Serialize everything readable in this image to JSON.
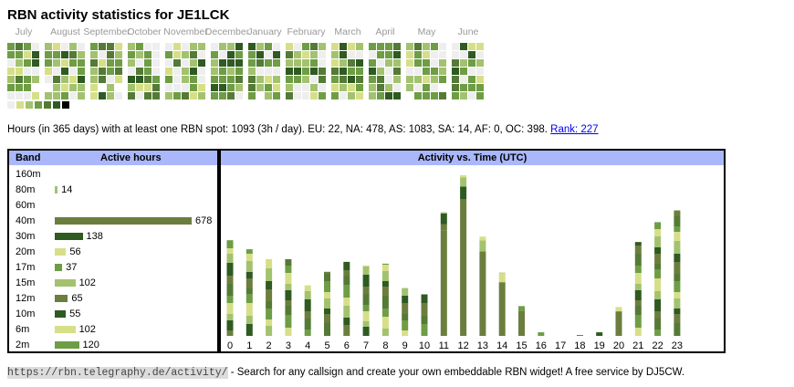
{
  "page": {
    "title": "RBN activity statistics for JE1LCK",
    "months": [
      "July",
      "August",
      "September",
      "October",
      "November",
      "December",
      "January",
      "February",
      "March",
      "April",
      "May",
      "June"
    ],
    "legend_colors": [
      "#eeeeee",
      "#d6df88",
      "#a3c26f",
      "#6e9d45",
      "#557a36",
      "#2f5a22",
      "#000000"
    ],
    "summary": {
      "text": "Hours (in 365 days) with at least one RBN spot: 1093 (3h / day). EU: 22, NA: 478, AS: 1083, SA: 14, AF: 0, OC: 398.",
      "rank_label": "Rank: 227"
    },
    "footer": {
      "url": "https://rbn.telegraphy.de/activity/",
      "text": " - Search for any callsign and create your own embeddable RBN widget! A free service by DJ5CW."
    }
  },
  "bands_table": {
    "header_band": "Band",
    "header_hours": "Active hours",
    "rows": [
      {
        "band": "160m",
        "hours": null,
        "color": "#6e9d45"
      },
      {
        "band": "80m",
        "hours": "14",
        "color": "#a3c26f"
      },
      {
        "band": "60m",
        "hours": null,
        "color": "#6e9d45"
      },
      {
        "band": "40m",
        "hours": "678",
        "color": "#6b7e3e"
      },
      {
        "band": "30m",
        "hours": "138",
        "color": "#2f5a22"
      },
      {
        "band": "20m",
        "hours": "56",
        "color": "#d6df88"
      },
      {
        "band": "17m",
        "hours": "37",
        "color": "#6e9d45"
      },
      {
        "band": "15m",
        "hours": "102",
        "color": "#a3c26f"
      },
      {
        "band": "12m",
        "hours": "65",
        "color": "#6b7e3e"
      },
      {
        "band": "10m",
        "hours": "55",
        "color": "#2f5a22"
      },
      {
        "band": "6m",
        "hours": "102",
        "color": "#d6df88"
      },
      {
        "band": "2m",
        "hours": "120",
        "color": "#6e9d45"
      }
    ]
  },
  "chart_data": {
    "type": "bar",
    "title": "Activity vs. Time (UTC)",
    "categories": [
      "0",
      "1",
      "2",
      "3",
      "4",
      "5",
      "6",
      "7",
      "8",
      "9",
      "10",
      "11",
      "12",
      "13",
      "14",
      "15",
      "16",
      "17",
      "18",
      "19",
      "20",
      "21",
      "22",
      "23"
    ],
    "values": [
      106,
      96,
      85,
      85,
      56,
      71,
      82,
      78,
      80,
      53,
      46,
      137,
      178,
      110,
      70,
      33,
      4,
      0,
      1,
      4,
      32,
      104,
      126,
      139
    ]
  }
}
